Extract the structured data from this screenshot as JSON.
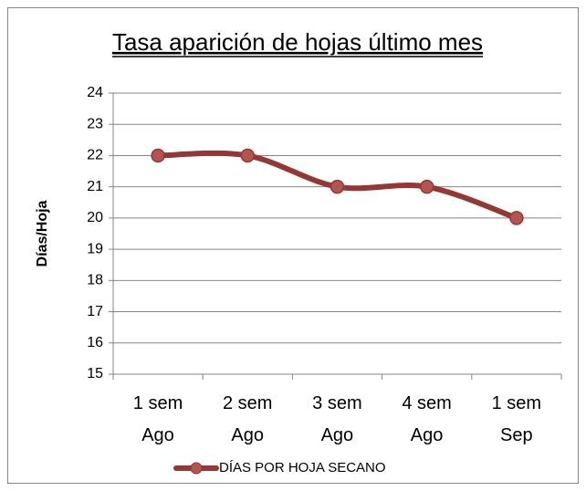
{
  "chart_data": {
    "type": "line",
    "title": "Tasa aparición de hojas último mes",
    "y_label": "Días/Hoja",
    "categories": [
      "1 sem\nAgo",
      "2 sem\nAgo",
      "3 sem\nAgo",
      "4 sem\nAgo",
      "1 sem\nSep"
    ],
    "series": [
      {
        "name": "DÍAS POR HOJA SECANO",
        "color": "#953735",
        "values": [
          22,
          22,
          21,
          21,
          20
        ]
      }
    ],
    "ylim": [
      15,
      24
    ],
    "yticks": [
      15,
      16,
      17,
      18,
      19,
      20,
      21,
      22,
      23,
      24
    ],
    "grid": true,
    "smooth": true,
    "legend": "bottom"
  }
}
